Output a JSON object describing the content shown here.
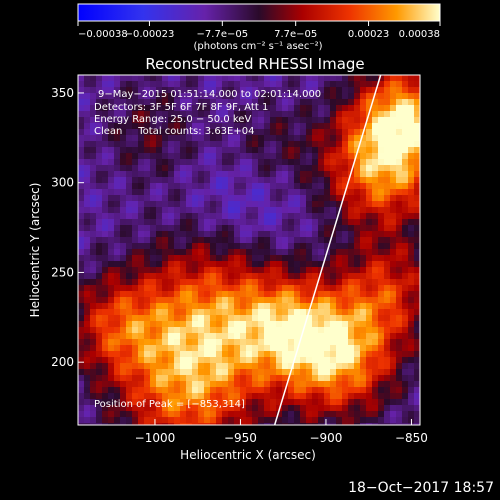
{
  "chart_data": {
    "type": "heatmap",
    "title": "Reconstructed RHESSI Image",
    "xlabel": "Heliocentric X (arcsec)",
    "ylabel": "Heliocentric Y (arcsec)",
    "xlim": [
      -1045,
      -845
    ],
    "ylim": [
      165,
      360
    ],
    "xticks": [
      -1000,
      -950,
      -900,
      -850
    ],
    "xtick_labels": [
      "−1000",
      "−950",
      "−900",
      "−850"
    ],
    "yticks": [
      200,
      250,
      300,
      350
    ],
    "ytick_labels": [
      "200",
      "250",
      "300",
      "350"
    ],
    "colorbar": {
      "ticks": [
        -0.00038,
        -0.00023,
        -7.7e-05,
        7.7e-05,
        0.00023,
        0.00038
      ],
      "tick_labels": [
        "−0.00038",
        "−0.00023",
        "−7.7e−05",
        "7.7e−05",
        "0.00023",
        "0.00038"
      ],
      "unit_label": "(photons cm⁻² s⁻¹ asec⁻²)",
      "min": -0.00038,
      "max": 0.00038
    },
    "annotations": [
      "9−May−2015 01:51:14.000 to 02:01:14.000",
      "Detectors: 3F 5F 6F 7F 8F 9F, Att 1",
      "Energy Range: 25.0 − 50.0 keV",
      "Clean     Total counts: 3.63E+04"
    ],
    "peak_label": "Position of Peak = [−853,314]",
    "limb_line": {
      "x": [
        -930,
        -868
      ],
      "y": [
        165,
        360
      ]
    }
  },
  "timestamp": "18−Oct−2017 18:57"
}
